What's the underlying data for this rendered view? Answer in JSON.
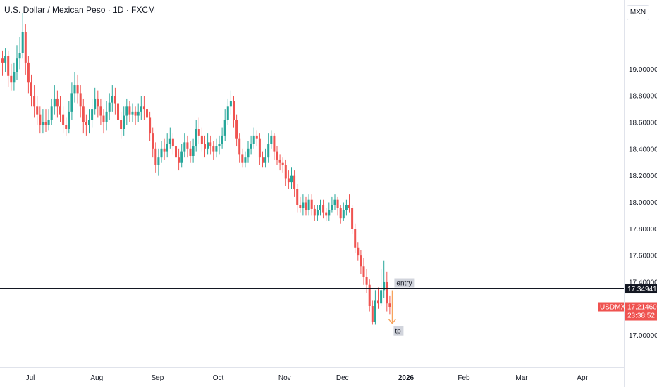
{
  "header": {
    "title": "U.S. Dollar / Mexican Peso · 1D · FXCM",
    "currency_button": "MXN"
  },
  "colors": {
    "up": "#26a69a",
    "down": "#ef5350",
    "line": "#131722",
    "label_bg": "#d1d4dc",
    "price_label_bg": "#ef5350",
    "level_label_bg": "#131722",
    "arrow": "#f7a35c"
  },
  "chart_data": {
    "type": "candlestick",
    "symbol": "USDMXN",
    "ylim": [
      16.76,
      19.52
    ],
    "y_ticks": [
      "19.00000",
      "18.80000",
      "18.60000",
      "18.40000",
      "18.20000",
      "18.00000",
      "17.80000",
      "17.60000",
      "17.40000",
      "17.00000"
    ],
    "y_tick_values": [
      19.0,
      18.8,
      18.6,
      18.4,
      18.2,
      18.0,
      17.8,
      17.6,
      17.4,
      17.0
    ],
    "x_ticks": [
      {
        "label": "Jul",
        "index": 10,
        "bold": false
      },
      {
        "label": "Aug",
        "index": 33,
        "bold": false
      },
      {
        "label": "Sep",
        "index": 54,
        "bold": false
      },
      {
        "label": "Oct",
        "index": 75,
        "bold": false
      },
      {
        "label": "Nov",
        "index": 98,
        "bold": false
      },
      {
        "label": "Dec",
        "index": 118,
        "bold": false
      },
      {
        "label": "2026",
        "index": 140,
        "bold": true
      },
      {
        "label": "Feb",
        "index": 160,
        "bold": false
      },
      {
        "label": "Mar",
        "index": 180,
        "bold": false
      },
      {
        "label": "Apr",
        "index": 201,
        "bold": false
      }
    ],
    "candles": [
      [
        19.08,
        19.05,
        19.14,
        18.95
      ],
      [
        19.05,
        19.1,
        19.16,
        18.98
      ],
      [
        19.1,
        18.95,
        19.14,
        18.87
      ],
      [
        18.95,
        18.9,
        19.04,
        18.84
      ],
      [
        18.9,
        18.98,
        19.05,
        18.84
      ],
      [
        18.98,
        19.08,
        19.18,
        18.92
      ],
      [
        19.08,
        19.12,
        19.24,
        19.0
      ],
      [
        19.12,
        19.28,
        19.42,
        19.08
      ],
      [
        19.28,
        19.05,
        19.34,
        18.96
      ],
      [
        19.05,
        18.9,
        19.1,
        18.82
      ],
      [
        18.9,
        18.8,
        18.96,
        18.72
      ],
      [
        18.8,
        18.72,
        18.88,
        18.64
      ],
      [
        18.72,
        18.66,
        18.8,
        18.58
      ],
      [
        18.66,
        18.58,
        18.72,
        18.52
      ],
      [
        18.58,
        18.6,
        18.7,
        18.52
      ],
      [
        18.6,
        18.58,
        18.7,
        18.53
      ],
      [
        18.58,
        18.62,
        18.7,
        18.54
      ],
      [
        18.62,
        18.72,
        18.78,
        18.58
      ],
      [
        18.72,
        18.78,
        18.88,
        18.66
      ],
      [
        18.78,
        18.72,
        18.84,
        18.64
      ],
      [
        18.72,
        18.66,
        18.8,
        18.6
      ],
      [
        18.66,
        18.58,
        18.72,
        18.52
      ],
      [
        18.58,
        18.55,
        18.64,
        18.5
      ],
      [
        18.55,
        18.68,
        18.76,
        18.52
      ],
      [
        18.68,
        18.82,
        18.9,
        18.62
      ],
      [
        18.82,
        18.88,
        18.98,
        18.75
      ],
      [
        18.88,
        18.82,
        18.96,
        18.74
      ],
      [
        18.82,
        18.72,
        18.88,
        18.64
      ],
      [
        18.72,
        18.6,
        18.78,
        18.52
      ],
      [
        18.6,
        18.58,
        18.66,
        18.5
      ],
      [
        18.58,
        18.62,
        18.7,
        18.52
      ],
      [
        18.62,
        18.7,
        18.78,
        18.56
      ],
      [
        18.7,
        18.78,
        18.86,
        18.66
      ],
      [
        18.78,
        18.72,
        18.84,
        18.64
      ],
      [
        18.72,
        18.65,
        18.78,
        18.58
      ],
      [
        18.65,
        18.6,
        18.7,
        18.52
      ],
      [
        18.6,
        18.68,
        18.76,
        18.54
      ],
      [
        18.68,
        18.75,
        18.82,
        18.62
      ],
      [
        18.75,
        18.8,
        18.88,
        18.68
      ],
      [
        18.8,
        18.74,
        18.86,
        18.66
      ],
      [
        18.74,
        18.62,
        18.78,
        18.56
      ],
      [
        18.62,
        18.55,
        18.68,
        18.48
      ],
      [
        18.55,
        18.65,
        18.72,
        18.5
      ],
      [
        18.65,
        18.72,
        18.78,
        18.58
      ],
      [
        18.72,
        18.66,
        18.76,
        18.6
      ],
      [
        18.66,
        18.68,
        18.74,
        18.6
      ],
      [
        18.68,
        18.65,
        18.72,
        18.58
      ],
      [
        18.65,
        18.68,
        18.74,
        18.6
      ],
      [
        18.68,
        18.72,
        18.8,
        18.62
      ],
      [
        18.72,
        18.7,
        18.8,
        18.62
      ],
      [
        18.7,
        18.64,
        18.74,
        18.56
      ],
      [
        18.64,
        18.52,
        18.68,
        18.46
      ],
      [
        18.52,
        18.4,
        18.56,
        18.34
      ],
      [
        18.4,
        18.28,
        18.45,
        18.22
      ],
      [
        18.28,
        18.34,
        18.4,
        18.2
      ],
      [
        18.34,
        18.4,
        18.46,
        18.3
      ],
      [
        18.4,
        18.38,
        18.48,
        18.32
      ],
      [
        18.38,
        18.44,
        18.52,
        18.34
      ],
      [
        18.44,
        18.48,
        18.56,
        18.4
      ],
      [
        18.48,
        18.42,
        18.52,
        18.36
      ],
      [
        18.42,
        18.34,
        18.46,
        18.28
      ],
      [
        18.34,
        18.3,
        18.4,
        18.24
      ],
      [
        18.3,
        18.38,
        18.44,
        18.26
      ],
      [
        18.38,
        18.45,
        18.52,
        18.34
      ],
      [
        18.45,
        18.4,
        18.5,
        18.34
      ],
      [
        18.4,
        18.35,
        18.46,
        18.3
      ],
      [
        18.35,
        18.42,
        18.48,
        18.3
      ],
      [
        18.42,
        18.55,
        18.62,
        18.38
      ],
      [
        18.55,
        18.5,
        18.64,
        18.44
      ],
      [
        18.5,
        18.44,
        18.56,
        18.38
      ],
      [
        18.44,
        18.4,
        18.5,
        18.34
      ],
      [
        18.4,
        18.45,
        18.52,
        18.36
      ],
      [
        18.45,
        18.42,
        18.5,
        18.36
      ],
      [
        18.42,
        18.38,
        18.46,
        18.32
      ],
      [
        18.38,
        18.42,
        18.48,
        18.34
      ],
      [
        18.42,
        18.44,
        18.5,
        18.36
      ],
      [
        18.44,
        18.5,
        18.56,
        18.4
      ],
      [
        18.5,
        18.62,
        18.7,
        18.46
      ],
      [
        18.62,
        18.72,
        18.78,
        18.58
      ],
      [
        18.72,
        18.76,
        18.84,
        18.66
      ],
      [
        18.76,
        18.62,
        18.8,
        18.56
      ],
      [
        18.62,
        18.48,
        18.66,
        18.42
      ],
      [
        18.48,
        18.36,
        18.52,
        18.3
      ],
      [
        18.36,
        18.3,
        18.4,
        18.26
      ],
      [
        18.3,
        18.34,
        18.38,
        18.26
      ],
      [
        18.34,
        18.4,
        18.46,
        18.3
      ],
      [
        18.4,
        18.44,
        18.5,
        18.36
      ],
      [
        18.44,
        18.5,
        18.56,
        18.4
      ],
      [
        18.5,
        18.48,
        18.54,
        18.42
      ],
      [
        18.48,
        18.34,
        18.52,
        18.28
      ],
      [
        18.34,
        18.3,
        18.38,
        18.26
      ],
      [
        18.3,
        18.34,
        18.4,
        18.26
      ],
      [
        18.34,
        18.44,
        18.52,
        18.3
      ],
      [
        18.44,
        18.5,
        18.54,
        18.4
      ],
      [
        18.5,
        18.38,
        18.52,
        18.32
      ],
      [
        18.38,
        18.32,
        18.42,
        18.28
      ],
      [
        18.32,
        18.3,
        18.36,
        18.24
      ],
      [
        18.3,
        18.28,
        18.34,
        18.22
      ],
      [
        18.28,
        18.18,
        18.32,
        18.12
      ],
      [
        18.18,
        18.15,
        18.24,
        18.1
      ],
      [
        18.15,
        18.2,
        18.26,
        18.1
      ],
      [
        18.2,
        18.1,
        18.24,
        18.04
      ],
      [
        18.1,
        17.98,
        18.14,
        17.92
      ],
      [
        17.98,
        17.96,
        18.04,
        17.92
      ],
      [
        17.96,
        18.0,
        18.06,
        17.9
      ],
      [
        18.0,
        17.94,
        18.04,
        17.9
      ],
      [
        17.94,
        18.02,
        18.06,
        17.9
      ],
      [
        18.02,
        17.95,
        18.06,
        17.9
      ],
      [
        17.95,
        17.9,
        17.98,
        17.86
      ],
      [
        17.9,
        17.94,
        17.98,
        17.86
      ],
      [
        17.94,
        17.98,
        18.02,
        17.9
      ],
      [
        17.98,
        17.92,
        18.02,
        17.88
      ],
      [
        17.92,
        17.9,
        17.96,
        17.86
      ],
      [
        17.9,
        17.94,
        18.0,
        17.86
      ],
      [
        17.94,
        17.98,
        18.04,
        17.92
      ],
      [
        17.98,
        18.02,
        18.06,
        17.94
      ],
      [
        18.02,
        17.96,
        18.04,
        17.9
      ],
      [
        17.96,
        17.88,
        17.98,
        17.84
      ],
      [
        17.88,
        17.94,
        18.0,
        17.86
      ],
      [
        17.94,
        17.98,
        18.02,
        17.9
      ],
      [
        17.98,
        17.96,
        18.06,
        17.92
      ],
      [
        17.96,
        17.8,
        17.98,
        17.76
      ],
      [
        17.8,
        17.66,
        17.84,
        17.62
      ],
      [
        17.66,
        17.6,
        17.7,
        17.56
      ],
      [
        17.6,
        17.52,
        17.64,
        17.46
      ],
      [
        17.52,
        17.44,
        17.58,
        17.38
      ],
      [
        17.44,
        17.38,
        17.5,
        17.32
      ],
      [
        17.38,
        17.22,
        17.42,
        17.18
      ],
      [
        17.22,
        17.1,
        17.26,
        17.08
      ],
      [
        17.1,
        17.26,
        17.34,
        17.08
      ],
      [
        17.26,
        17.24,
        17.36,
        17.2
      ],
      [
        17.24,
        17.34,
        17.5,
        17.22
      ],
      [
        17.34,
        17.4,
        17.56,
        17.28
      ],
      [
        17.4,
        17.24,
        17.48,
        17.18
      ],
      [
        17.24,
        17.21,
        17.3,
        17.16
      ]
    ],
    "levels": [
      {
        "name": "entry",
        "price": 17.34941,
        "price_label": "17.34941"
      }
    ],
    "tp_price": 17.1,
    "last_price": {
      "symbol": "USDMXN",
      "price": "17.21460",
      "countdown": "23:38:52"
    },
    "annotations": [
      "entry",
      "tp"
    ]
  }
}
